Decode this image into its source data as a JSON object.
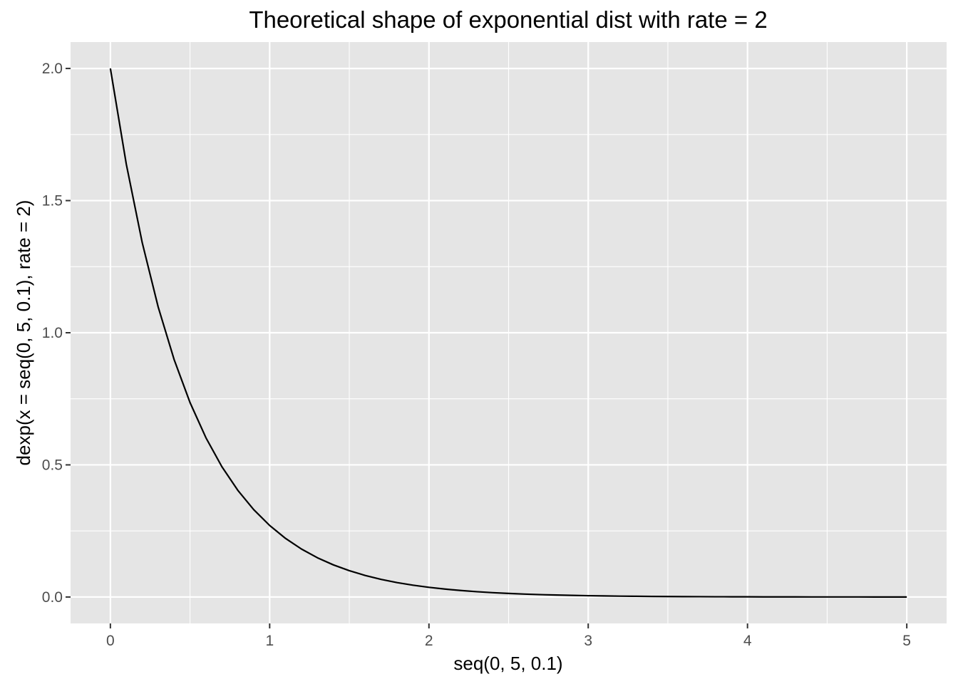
{
  "chart_data": {
    "type": "line",
    "title": "Theoretical shape of exponential dist with rate = 2",
    "xlabel": "seq(0, 5, 0.1)",
    "ylabel": "dexp(x = seq(0, 5, 0.1), rate = 2)",
    "xlim": [
      -0.25,
      5.25
    ],
    "ylim": [
      -0.1,
      2.1
    ],
    "x_ticks": [
      0,
      1,
      2,
      3,
      4,
      5
    ],
    "x_tick_labels": [
      "0",
      "1",
      "2",
      "3",
      "4",
      "5"
    ],
    "x_minor_ticks": [
      0.5,
      1.5,
      2.5,
      3.5,
      4.5
    ],
    "y_ticks": [
      0,
      0.5,
      1,
      1.5,
      2
    ],
    "y_tick_labels": [
      "0.0",
      "0.5",
      "1.0",
      "1.5",
      "2.0"
    ],
    "y_minor_ticks": [
      0.25,
      0.75,
      1.25,
      1.75
    ],
    "grid": true,
    "colors": {
      "panel_background": "#e5e5e5",
      "grid": "#ffffff",
      "line": "#000000",
      "tick_label": "#4d4d4d",
      "tick_mark": "#333333"
    },
    "series": [
      {
        "x": [
          0,
          0.1,
          0.2,
          0.3,
          0.4,
          0.5,
          0.6,
          0.7,
          0.8,
          0.9,
          1,
          1.1,
          1.2,
          1.3,
          1.4,
          1.5,
          1.6,
          1.7,
          1.8,
          1.9,
          2,
          2.1,
          2.2,
          2.3,
          2.4,
          2.5,
          2.6,
          2.7,
          2.8,
          2.9,
          3,
          3.1,
          3.2,
          3.3,
          3.4,
          3.5,
          3.6,
          3.7,
          3.8,
          3.9,
          4,
          4.1,
          4.2,
          4.3,
          4.4,
          4.5,
          4.6,
          4.7,
          4.8,
          4.9,
          5
        ],
        "y": [
          2,
          1.6375,
          1.3406,
          1.0976,
          0.8987,
          0.7358,
          0.6024,
          0.4932,
          0.4038,
          0.3306,
          0.2707,
          0.2216,
          0.1814,
          0.1485,
          0.1216,
          0.0996,
          0.0815,
          0.0667,
          0.0546,
          0.0447,
          0.0366,
          0.03,
          0.0246,
          0.0201,
          0.0165,
          0.0135,
          0.011,
          0.009,
          0.0074,
          0.0061,
          0.005,
          0.0041,
          0.0033,
          0.0027,
          0.0022,
          0.0018,
          0.0015,
          0.0012,
          0.001,
          0.0008,
          0.0007,
          0.0005,
          0.0004,
          0.0004,
          0.0003,
          0.0002,
          0.0002,
          0.0002,
          0.0001,
          0.0001,
          0.0001
        ]
      }
    ]
  }
}
